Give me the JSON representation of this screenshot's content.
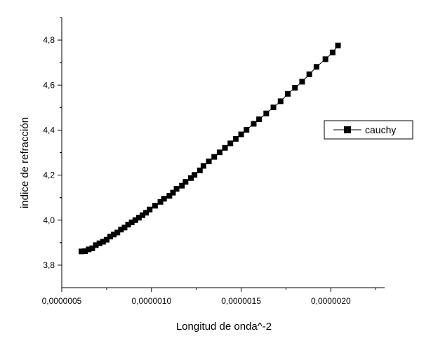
{
  "chart_data": {
    "type": "line",
    "title": "",
    "xlabel": "Longitud de onda^-2",
    "ylabel": "indice de refracción",
    "xlim": [
      5e-07,
      2.3e-06
    ],
    "ylim": [
      3.7,
      4.9
    ],
    "xticks": [
      {
        "value": 5e-07,
        "label": "0,0000005"
      },
      {
        "value": 1e-06,
        "label": "0,0000010"
      },
      {
        "value": 1.5e-06,
        "label": "0,0000015"
      },
      {
        "value": 2e-06,
        "label": "0,0000020"
      }
    ],
    "yticks": [
      {
        "value": 3.8,
        "label": "3,8"
      },
      {
        "value": 4.0,
        "label": "4,0"
      },
      {
        "value": 4.2,
        "label": "4,2"
      },
      {
        "value": 4.4,
        "label": "4,4"
      },
      {
        "value": 4.6,
        "label": "4,6"
      },
      {
        "value": 4.8,
        "label": "4,8"
      }
    ],
    "grid": false,
    "legend_position": "right",
    "series": [
      {
        "name": "cauchy",
        "color": "#000000",
        "marker": "square",
        "points": [
          [
            6.1e-07,
            3.861
          ],
          [
            6.3e-07,
            3.862
          ],
          [
            6.5e-07,
            3.87
          ],
          [
            6.7e-07,
            3.875
          ],
          [
            6.9e-07,
            3.889
          ],
          [
            7.1e-07,
            3.897
          ],
          [
            7.3e-07,
            3.904
          ],
          [
            7.5e-07,
            3.913
          ],
          [
            7.7e-07,
            3.927
          ],
          [
            7.9e-07,
            3.936
          ],
          [
            8.1e-07,
            3.945
          ],
          [
            8.3e-07,
            3.958
          ],
          [
            8.5e-07,
            3.967
          ],
          [
            8.7e-07,
            3.98
          ],
          [
            8.9e-07,
            3.99
          ],
          [
            9.1e-07,
            4.0
          ],
          [
            9.3e-07,
            4.011
          ],
          [
            9.5e-07,
            4.022
          ],
          [
            9.7e-07,
            4.033
          ],
          [
            9.9e-07,
            4.047
          ],
          [
            1.02e-06,
            4.064
          ],
          [
            1.05e-06,
            4.081
          ],
          [
            1.07e-06,
            4.095
          ],
          [
            1.1e-06,
            4.108
          ],
          [
            1.12e-06,
            4.122
          ],
          [
            1.14e-06,
            4.139
          ],
          [
            1.17e-06,
            4.153
          ],
          [
            1.19e-06,
            4.17
          ],
          [
            1.22e-06,
            4.187
          ],
          [
            1.24e-06,
            4.201
          ],
          [
            1.27e-06,
            4.221
          ],
          [
            1.29e-06,
            4.241
          ],
          [
            1.32e-06,
            4.261
          ],
          [
            1.35e-06,
            4.281
          ],
          [
            1.38e-06,
            4.301
          ],
          [
            1.41e-06,
            4.321
          ],
          [
            1.44e-06,
            4.341
          ],
          [
            1.47e-06,
            4.361
          ],
          [
            1.5e-06,
            4.381
          ],
          [
            1.53e-06,
            4.401
          ],
          [
            1.57e-06,
            4.428
          ],
          [
            1.6e-06,
            4.448
          ],
          [
            1.64e-06,
            4.474
          ],
          [
            1.68e-06,
            4.501
          ],
          [
            1.72e-06,
            4.528
          ],
          [
            1.76e-06,
            4.561
          ],
          [
            1.8e-06,
            4.588
          ],
          [
            1.84e-06,
            4.615
          ],
          [
            1.88e-06,
            4.648
          ],
          [
            1.92e-06,
            4.681
          ],
          [
            1.97e-06,
            4.715
          ],
          [
            2.01e-06,
            4.745
          ],
          [
            2.04e-06,
            4.776
          ]
        ]
      }
    ]
  }
}
